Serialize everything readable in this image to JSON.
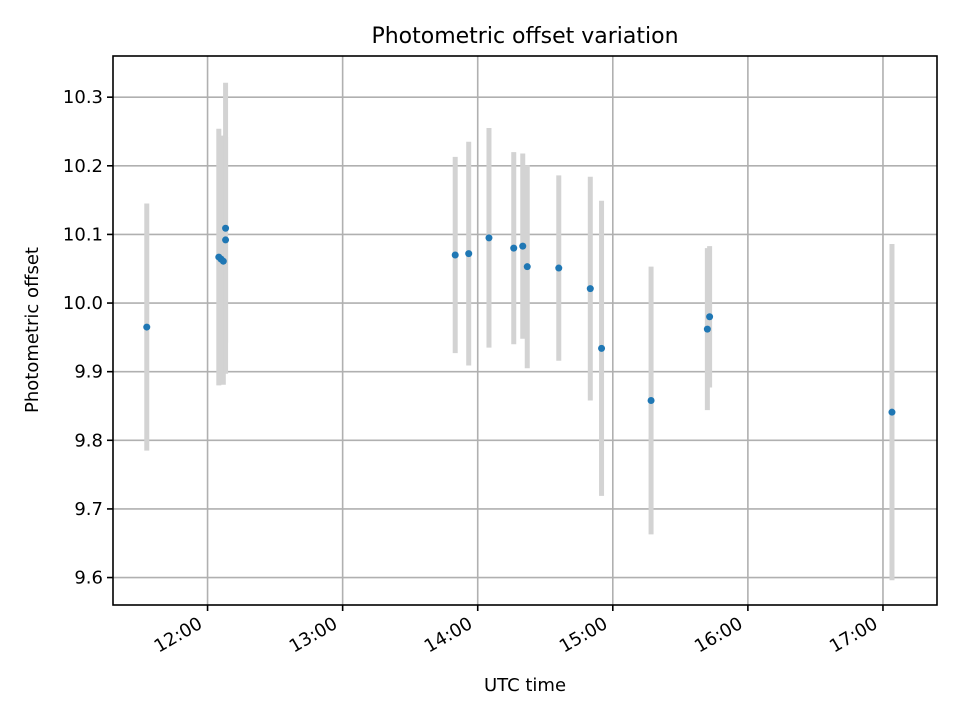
{
  "chart_data": {
    "type": "scatter",
    "title": "Photometric offset variation",
    "xlabel": "UTC time",
    "ylabel": "Photometric offset",
    "x_ticks": [
      "12:00",
      "13:00",
      "14:00",
      "15:00",
      "16:00",
      "17:00"
    ],
    "y_ticks": [
      "9.6",
      "9.7",
      "9.8",
      "9.9",
      "10.0",
      "10.1",
      "10.2",
      "10.3"
    ],
    "xlim": [
      "11:18",
      "17:24"
    ],
    "ylim": [
      9.56,
      10.36
    ],
    "grid": true,
    "point_color": "#1f77b4",
    "errorbar_color": "#d3d3d3",
    "points": [
      {
        "x": "11:33",
        "y": 9.965,
        "err": 0.18
      },
      {
        "x": "12:05",
        "y": 10.067,
        "err": 0.187
      },
      {
        "x": "12:06",
        "y": 10.064,
        "err": 0.18
      },
      {
        "x": "12:07",
        "y": 10.061,
        "err": 0.18
      },
      {
        "x": "12:08",
        "y": 10.092,
        "err": 0.15
      },
      {
        "x": "12:08",
        "y": 10.109,
        "err": 0.212
      },
      {
        "x": "13:50",
        "y": 10.07,
        "err": 0.143
      },
      {
        "x": "13:56",
        "y": 10.072,
        "err": 0.163
      },
      {
        "x": "14:05",
        "y": 10.095,
        "err": 0.16
      },
      {
        "x": "14:16",
        "y": 10.08,
        "err": 0.14
      },
      {
        "x": "14:20",
        "y": 10.083,
        "err": 0.135
      },
      {
        "x": "14:22",
        "y": 10.053,
        "err": 0.148
      },
      {
        "x": "14:36",
        "y": 10.051,
        "err": 0.135
      },
      {
        "x": "14:50",
        "y": 10.021,
        "err": 0.163
      },
      {
        "x": "14:55",
        "y": 9.934,
        "err": 0.215
      },
      {
        "x": "15:17",
        "y": 9.858,
        "err": 0.195
      },
      {
        "x": "15:42",
        "y": 9.962,
        "err": 0.118
      },
      {
        "x": "15:43",
        "y": 9.98,
        "err": 0.103
      },
      {
        "x": "17:04",
        "y": 9.841,
        "err": 0.245
      }
    ]
  }
}
